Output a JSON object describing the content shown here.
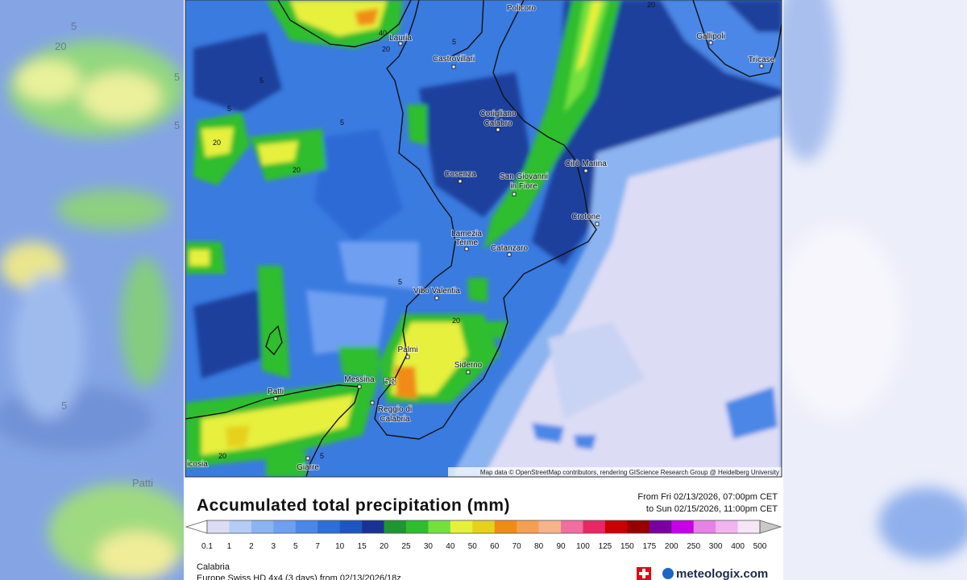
{
  "map": {
    "places": [
      [
        "Policoro"
      ],
      [
        "Gallipoli"
      ],
      [
        "Tricase"
      ],
      [
        "Lauria"
      ],
      [
        "Castrovillari"
      ],
      [
        "Corigliano",
        "Calabro"
      ],
      [
        "Cosenza"
      ],
      [
        "San Giovanni",
        "in Fiore"
      ],
      [
        "Cirò Marina"
      ],
      [
        "Crotone"
      ],
      [
        "Lamezia",
        "Terme"
      ],
      [
        "Catanzaro"
      ],
      [
        "Vibo Valentia"
      ],
      [
        "Palmi"
      ],
      [
        "Siderno"
      ],
      [
        "Messina"
      ],
      [
        "Reggio di",
        "Calabria"
      ],
      [
        "Patti"
      ],
      [
        "Giarre"
      ],
      [
        "icosia"
      ]
    ],
    "contour_labels": [
      "5",
      "5",
      "5",
      "5",
      "20",
      "20",
      "40",
      "20",
      "5",
      "20",
      "20",
      "5",
      "20"
    ],
    "max_label": "58",
    "attribution": "Map data © OpenStreetMap contributors, rendering GIScience Research Group @ Heidelberg University",
    "side_labels": [
      "5",
      "20",
      "5",
      "5",
      "5",
      "Patti"
    ]
  },
  "header": {
    "title": "Accumulated total precipitation (mm)",
    "from": "From Fri 02/13/2026, 07:00pm CET",
    "to": "to Sun 02/15/2026, 11:00pm CET"
  },
  "legend": {
    "levels": [
      0.1,
      1,
      2,
      3,
      5,
      7,
      10,
      15,
      20,
      25,
      30,
      40,
      50,
      60,
      70,
      80,
      90,
      100,
      125,
      150,
      175,
      200,
      250,
      300,
      400,
      500
    ],
    "colors": [
      "#ffffff",
      "#dcdcf5",
      "#b4cdf5",
      "#8cb4f0",
      "#6e9ff0",
      "#4b87e6",
      "#2d6fd8",
      "#1e55c0",
      "#1a3296",
      "#1e9632",
      "#2dbe2d",
      "#73e13c",
      "#e6f03c",
      "#e6d21e",
      "#f08c14",
      "#f5a050",
      "#f5b48c",
      "#f06ea0",
      "#e62864",
      "#c80000",
      "#960000",
      "#7800a0",
      "#c800e6",
      "#e682e6",
      "#f0b4f0",
      "#f5e6f5",
      "#c8c8c8"
    ]
  },
  "footer": {
    "region": "Calabria",
    "model": "Europe Swiss HD 4x4 (3 days) from 02/13/2026/18z",
    "brand": "meteologix.com"
  }
}
